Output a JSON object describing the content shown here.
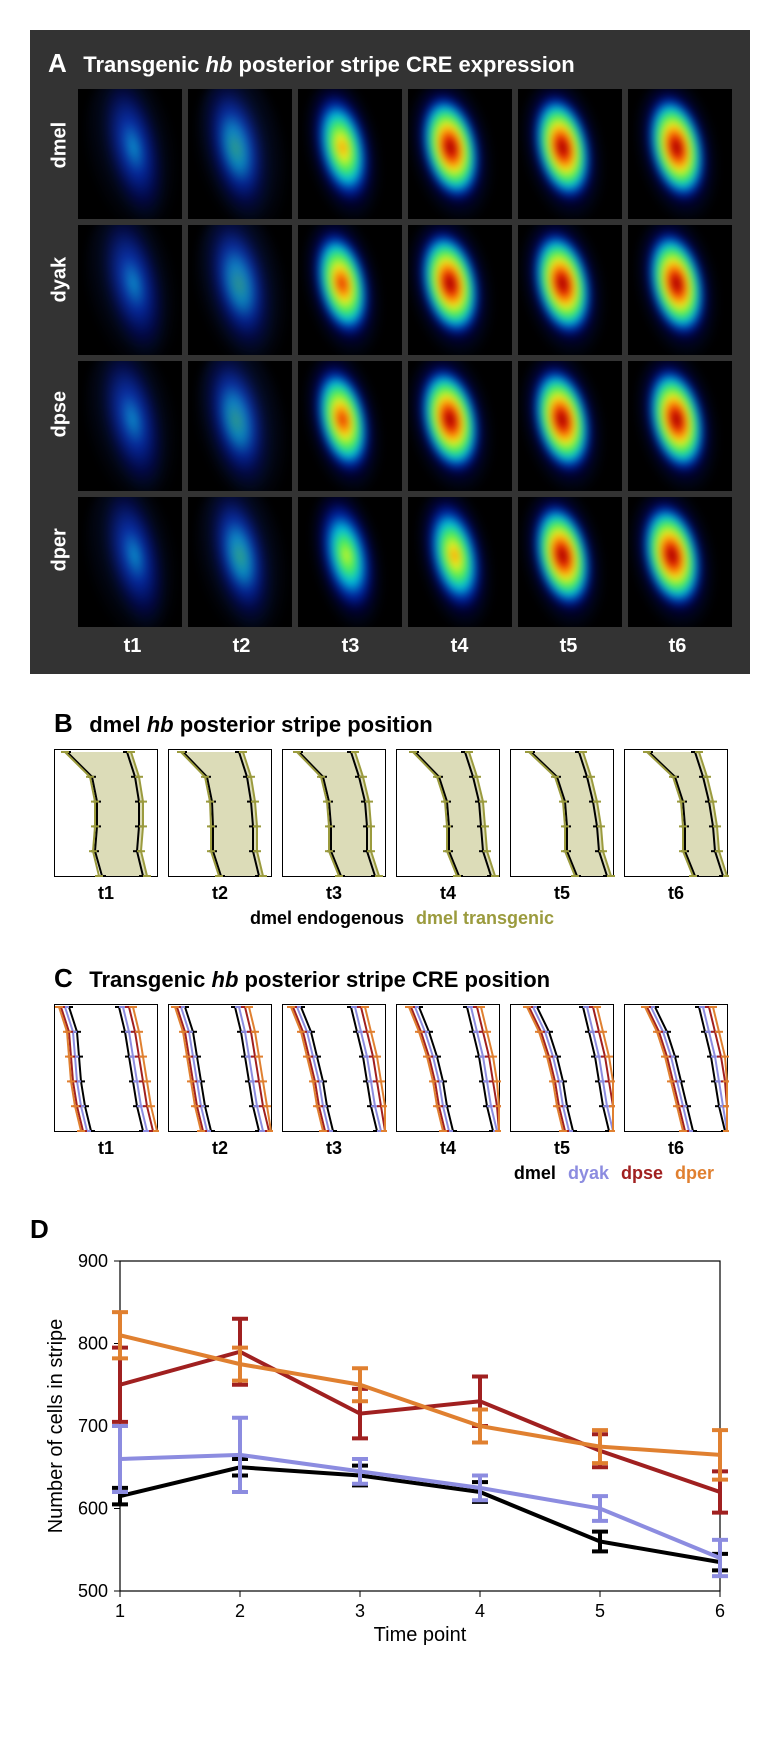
{
  "panelA": {
    "label": "A",
    "title_pre": "Transgenic ",
    "title_it": "hb",
    "title_post": " posterior stripe CRE expression",
    "row_labels": [
      "dmel",
      "dyak",
      "dpse",
      "dper"
    ],
    "time_labels": [
      "t1",
      "t2",
      "t3",
      "t4",
      "t5",
      "t6"
    ],
    "bg_color": "#333333",
    "cell_bg": "#000000",
    "grid": {
      "rows": 4,
      "cols": 6,
      "intensity": [
        [
          0.1,
          0.25,
          0.55,
          0.85,
          0.8,
          0.78
        ],
        [
          0.15,
          0.3,
          0.65,
          0.9,
          0.85,
          0.8
        ],
        [
          0.15,
          0.28,
          0.6,
          0.88,
          0.82,
          0.78
        ],
        [
          0.1,
          0.2,
          0.4,
          0.55,
          0.8,
          0.88
        ]
      ],
      "shift": [
        [
          0.55,
          0.48,
          0.44,
          0.42,
          0.44,
          0.48
        ],
        [
          0.55,
          0.5,
          0.44,
          0.42,
          0.44,
          0.48
        ],
        [
          0.54,
          0.48,
          0.44,
          0.42,
          0.44,
          0.48
        ],
        [
          0.56,
          0.52,
          0.48,
          0.46,
          0.44,
          0.44
        ]
      ]
    },
    "colormap": {
      "stops": [
        "#000033",
        "#0020a0",
        "#00c0e0",
        "#50f050",
        "#f0f020",
        "#ff8000",
        "#d00000",
        "#800000"
      ]
    }
  },
  "panelB": {
    "label": "B",
    "title_pre": "dmel ",
    "title_it": "hb",
    "title_post": " posterior stripe position",
    "time_labels": [
      "t1",
      "t2",
      "t3",
      "t4",
      "t5",
      "t6"
    ],
    "legend": [
      {
        "text": "dmel endogenous",
        "color": "#000000"
      },
      {
        "text": "dmel transgenic",
        "color": "#9b9b3e"
      }
    ],
    "fill_color": "#cdcd9a",
    "series": {
      "dmel_endog": {
        "color": "#000000",
        "left": [
          [
            0.1,
            0.35,
            0.4,
            0.4,
            0.38,
            0.45
          ],
          [
            0.12,
            0.36,
            0.41,
            0.42,
            0.42,
            0.5
          ],
          [
            0.14,
            0.38,
            0.44,
            0.46,
            0.46,
            0.56
          ],
          [
            0.16,
            0.4,
            0.48,
            0.5,
            0.5,
            0.6
          ],
          [
            0.18,
            0.44,
            0.52,
            0.54,
            0.54,
            0.64
          ],
          [
            0.22,
            0.48,
            0.56,
            0.58,
            0.58,
            0.68
          ]
        ],
        "right": [
          [
            0.7,
            0.78,
            0.82,
            0.82,
            0.8,
            0.86
          ],
          [
            0.68,
            0.76,
            0.8,
            0.82,
            0.82,
            0.88
          ],
          [
            0.66,
            0.74,
            0.8,
            0.82,
            0.82,
            0.9
          ],
          [
            0.66,
            0.74,
            0.8,
            0.82,
            0.84,
            0.92
          ],
          [
            0.66,
            0.74,
            0.8,
            0.84,
            0.86,
            0.94
          ],
          [
            0.68,
            0.76,
            0.82,
            0.86,
            0.88,
            0.96
          ]
        ]
      },
      "dmel_trans": {
        "color": "#9b9b3e",
        "left": [
          [
            0.08,
            0.33,
            0.38,
            0.38,
            0.36,
            0.42
          ],
          [
            0.1,
            0.34,
            0.39,
            0.4,
            0.4,
            0.48
          ],
          [
            0.12,
            0.36,
            0.42,
            0.44,
            0.44,
            0.54
          ],
          [
            0.14,
            0.38,
            0.46,
            0.48,
            0.48,
            0.58
          ],
          [
            0.16,
            0.42,
            0.5,
            0.52,
            0.52,
            0.62
          ],
          [
            0.2,
            0.46,
            0.54,
            0.56,
            0.56,
            0.66
          ]
        ],
        "right": [
          [
            0.74,
            0.82,
            0.86,
            0.86,
            0.84,
            0.9
          ],
          [
            0.72,
            0.8,
            0.84,
            0.86,
            0.86,
            0.92
          ],
          [
            0.7,
            0.78,
            0.84,
            0.86,
            0.86,
            0.94
          ],
          [
            0.7,
            0.78,
            0.84,
            0.86,
            0.88,
            0.96
          ],
          [
            0.7,
            0.78,
            0.84,
            0.88,
            0.9,
            0.98
          ],
          [
            0.72,
            0.8,
            0.86,
            0.9,
            0.92,
            1.0
          ]
        ]
      }
    }
  },
  "panelC": {
    "label": "C",
    "title_pre": "Transgenic ",
    "title_it": "hb",
    "title_post": " posterior stripe CRE position",
    "time_labels": [
      "t1",
      "t2",
      "t3",
      "t4",
      "t5",
      "t6"
    ],
    "legend": [
      {
        "text": "dmel",
        "color": "#000000"
      },
      {
        "text": "dyak",
        "color": "#8c8ce0"
      },
      {
        "text": "dpse",
        "color": "#a02020"
      },
      {
        "text": "dper",
        "color": "#e08030"
      }
    ],
    "series": {
      "dmel": {
        "color": "#000000",
        "left": [
          [
            0.12,
            0.2,
            0.22,
            0.24,
            0.28,
            0.34
          ],
          [
            0.14,
            0.22,
            0.26,
            0.3,
            0.34,
            0.4
          ],
          [
            0.16,
            0.26,
            0.32,
            0.38,
            0.42,
            0.48
          ],
          [
            0.2,
            0.3,
            0.38,
            0.44,
            0.48,
            0.54
          ],
          [
            0.24,
            0.36,
            0.44,
            0.5,
            0.54,
            0.6
          ],
          [
            0.28,
            0.4,
            0.48,
            0.54,
            0.6,
            0.66
          ]
        ],
        "right": [
          [
            0.62,
            0.68,
            0.72,
            0.76,
            0.8,
            0.86
          ],
          [
            0.64,
            0.7,
            0.74,
            0.78,
            0.82,
            0.88
          ],
          [
            0.66,
            0.72,
            0.78,
            0.82,
            0.86,
            0.92
          ],
          [
            0.68,
            0.74,
            0.8,
            0.84,
            0.88,
            0.94
          ],
          [
            0.7,
            0.76,
            0.82,
            0.86,
            0.9,
            0.96
          ],
          [
            0.72,
            0.78,
            0.84,
            0.88,
            0.92,
            0.98
          ]
        ]
      },
      "dyak": {
        "color": "#8c8ce0",
        "left": [
          [
            0.08,
            0.16,
            0.18,
            0.2,
            0.24,
            0.3
          ],
          [
            0.1,
            0.18,
            0.22,
            0.26,
            0.3,
            0.36
          ],
          [
            0.12,
            0.22,
            0.28,
            0.34,
            0.38,
            0.44
          ],
          [
            0.16,
            0.26,
            0.34,
            0.4,
            0.44,
            0.5
          ],
          [
            0.2,
            0.32,
            0.4,
            0.46,
            0.5,
            0.56
          ],
          [
            0.24,
            0.36,
            0.44,
            0.5,
            0.56,
            0.62
          ]
        ],
        "right": [
          [
            0.66,
            0.72,
            0.76,
            0.8,
            0.84,
            0.9
          ],
          [
            0.68,
            0.74,
            0.78,
            0.82,
            0.86,
            0.92
          ],
          [
            0.7,
            0.76,
            0.82,
            0.86,
            0.9,
            0.96
          ],
          [
            0.72,
            0.78,
            0.84,
            0.88,
            0.92,
            0.98
          ],
          [
            0.74,
            0.8,
            0.86,
            0.9,
            0.94,
            1.0
          ],
          [
            0.76,
            0.82,
            0.88,
            0.92,
            0.96,
            1.0
          ]
        ]
      },
      "dpse": {
        "color": "#a02020",
        "left": [
          [
            0.04,
            0.12,
            0.14,
            0.16,
            0.2,
            0.26
          ],
          [
            0.06,
            0.14,
            0.18,
            0.22,
            0.26,
            0.32
          ],
          [
            0.08,
            0.18,
            0.24,
            0.3,
            0.34,
            0.4
          ],
          [
            0.12,
            0.22,
            0.3,
            0.36,
            0.4,
            0.46
          ],
          [
            0.16,
            0.28,
            0.36,
            0.42,
            0.46,
            0.52
          ],
          [
            0.2,
            0.32,
            0.4,
            0.46,
            0.52,
            0.58
          ]
        ],
        "right": [
          [
            0.72,
            0.78,
            0.82,
            0.86,
            0.9,
            0.96
          ],
          [
            0.74,
            0.8,
            0.84,
            0.88,
            0.92,
            0.98
          ],
          [
            0.76,
            0.82,
            0.88,
            0.92,
            0.96,
            1.0
          ],
          [
            0.78,
            0.84,
            0.9,
            0.94,
            0.98,
            1.0
          ],
          [
            0.8,
            0.86,
            0.92,
            0.96,
            1.0,
            1.0
          ],
          [
            0.82,
            0.88,
            0.94,
            0.98,
            1.0,
            1.0
          ]
        ]
      },
      "dper": {
        "color": "#e08030",
        "left": [
          [
            0.02,
            0.1,
            0.12,
            0.14,
            0.18,
            0.24
          ],
          [
            0.04,
            0.12,
            0.16,
            0.2,
            0.24,
            0.3
          ],
          [
            0.06,
            0.16,
            0.22,
            0.28,
            0.32,
            0.38
          ],
          [
            0.1,
            0.2,
            0.28,
            0.34,
            0.38,
            0.44
          ],
          [
            0.14,
            0.26,
            0.34,
            0.4,
            0.44,
            0.5
          ],
          [
            0.18,
            0.3,
            0.38,
            0.44,
            0.5,
            0.56
          ]
        ],
        "right": [
          [
            0.76,
            0.82,
            0.86,
            0.9,
            0.94,
            1.0
          ],
          [
            0.78,
            0.84,
            0.88,
            0.92,
            0.96,
            1.0
          ],
          [
            0.8,
            0.86,
            0.92,
            0.96,
            1.0,
            1.0
          ],
          [
            0.82,
            0.88,
            0.94,
            0.98,
            1.0,
            1.0
          ],
          [
            0.84,
            0.9,
            0.96,
            1.0,
            1.0,
            1.0
          ],
          [
            0.86,
            0.92,
            0.98,
            1.0,
            1.0,
            1.0
          ]
        ]
      }
    }
  },
  "panelD": {
    "label": "D",
    "xlabel": "Time point",
    "ylabel": "Number of cells in stripe",
    "xlim": [
      1,
      6
    ],
    "ylim": [
      500,
      900
    ],
    "xticks": [
      1,
      2,
      3,
      4,
      5,
      6
    ],
    "yticks": [
      500,
      600,
      700,
      800,
      900
    ],
    "background": "#ffffff",
    "axis_color": "#000000",
    "line_width": 4,
    "err_cap": 8,
    "series": [
      {
        "name": "dmel",
        "color": "#000000",
        "y": [
          615,
          650,
          640,
          620,
          560,
          535
        ],
        "err": [
          10,
          10,
          12,
          12,
          12,
          10
        ]
      },
      {
        "name": "dyak",
        "color": "#8c8ce0",
        "y": [
          660,
          665,
          645,
          625,
          600,
          540
        ],
        "err": [
          40,
          45,
          15,
          15,
          15,
          22
        ]
      },
      {
        "name": "dpse",
        "color": "#a02020",
        "y": [
          750,
          790,
          715,
          730,
          670,
          620
        ],
        "err": [
          45,
          40,
          30,
          30,
          20,
          25
        ]
      },
      {
        "name": "dper",
        "color": "#e08030",
        "y": [
          810,
          775,
          750,
          700,
          675,
          665
        ],
        "err": [
          28,
          20,
          20,
          20,
          20,
          30
        ]
      }
    ]
  }
}
